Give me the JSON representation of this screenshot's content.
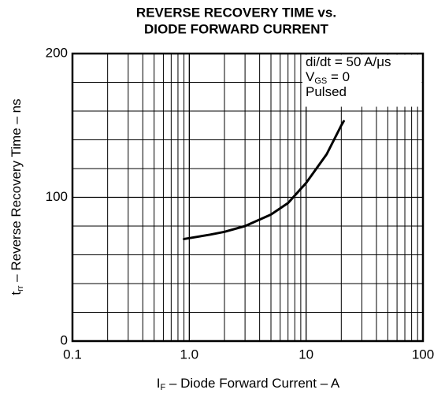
{
  "chart_data": {
    "type": "line",
    "title": [
      "REVERSE RECOVERY TIME vs.",
      "DIODE FORWARD CURRENT"
    ],
    "x_label": {
      "main": "I",
      "sub": "F",
      "rest": " – Diode Forward Current – A"
    },
    "y_label": {
      "main": "t",
      "sub": "rr",
      "rest": " – Reverse Recovery Time – ns"
    },
    "annotations": [
      {
        "main": "di/dt = 50 A/μs"
      },
      {
        "main": "V",
        "sub": "GS",
        "rest": " = 0"
      },
      {
        "main": "Pulsed"
      }
    ],
    "x_log": true,
    "xlim": [
      0.1,
      100
    ],
    "xticks": [
      0.1,
      {
        "value": 1,
        "label": "1.0"
      },
      10,
      100
    ],
    "x_minor_ticks": [
      0.2,
      0.3,
      0.4,
      0.5,
      0.6,
      0.7,
      0.8,
      0.9,
      2,
      3,
      4,
      5,
      6,
      7,
      8,
      9,
      20,
      30,
      40,
      50,
      60,
      70,
      80,
      90
    ],
    "ylim": [
      0,
      200
    ],
    "yticks": [
      0,
      100,
      200
    ],
    "y_minor_ticks": [
      20,
      40,
      60,
      80,
      120,
      140,
      160,
      180
    ],
    "grid": true,
    "series": [
      {
        "color": "#000000",
        "x": [
          0.9,
          1.5,
          2,
          3,
          5,
          7,
          10,
          15,
          20,
          21
        ],
        "values": [
          71,
          74,
          76,
          80,
          88,
          96,
          110,
          130,
          150,
          153
        ]
      }
    ]
  }
}
